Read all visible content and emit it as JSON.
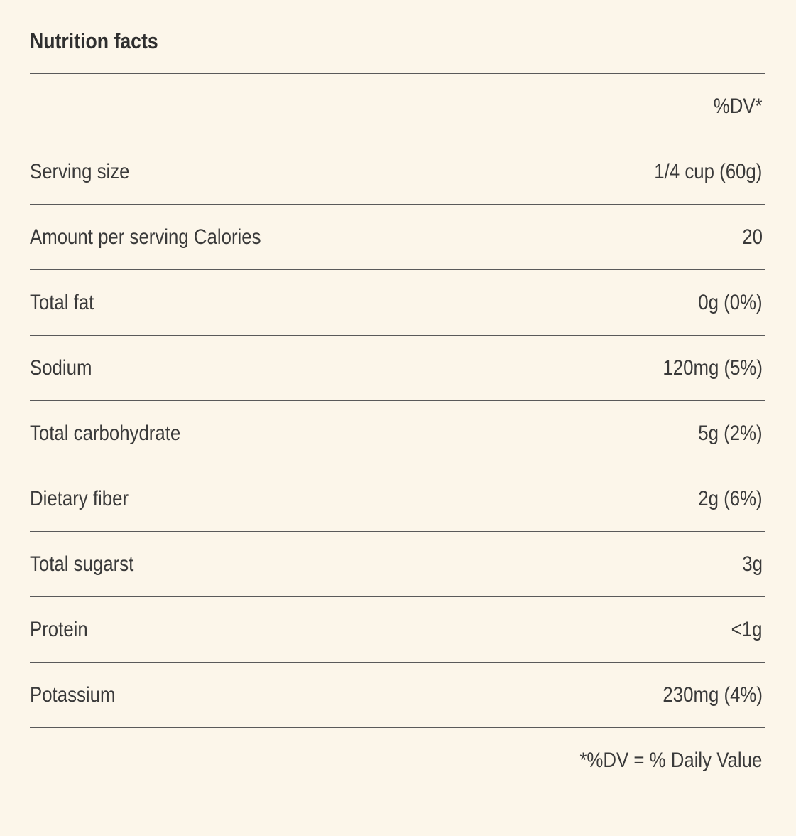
{
  "title": "Nutrition facts",
  "header": {
    "dv_label": "%DV*"
  },
  "rows": [
    {
      "label": "Serving size",
      "value": "1/4 cup (60g)"
    },
    {
      "label": "Amount per serving Calories",
      "value": "20"
    },
    {
      "label": "Total fat",
      "value": "0g (0%)"
    },
    {
      "label": "Sodium",
      "value": "120mg (5%)"
    },
    {
      "label": "Total carbohydrate",
      "value": "5g (2%)"
    },
    {
      "label": "Dietary fiber",
      "value": "2g (6%)"
    },
    {
      "label": "Total sugarst",
      "value": "3g"
    },
    {
      "label": "Protein",
      "value": "<1g"
    },
    {
      "label": "Potassium",
      "value": "230mg (4%)"
    }
  ],
  "footer": {
    "note": "*%DV = % Daily Value"
  }
}
